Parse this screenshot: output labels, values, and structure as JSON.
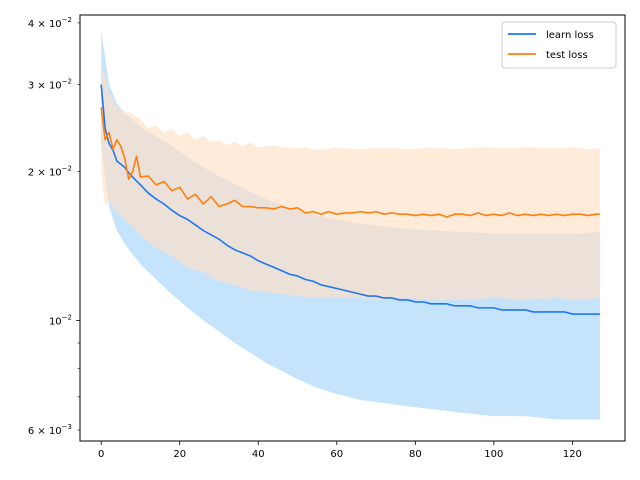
{
  "chart_data": {
    "type": "line",
    "title": "",
    "xlabel": "",
    "ylabel": "",
    "xlim": [
      -5.4,
      133.4
    ],
    "ylim": [
      0.0057,
      0.0415
    ],
    "yscale": "log",
    "grid": false,
    "legend_position": "top-right",
    "x_ticks": [
      {
        "value": 0,
        "label": "0"
      },
      {
        "value": 20,
        "label": "20"
      },
      {
        "value": 40,
        "label": "40"
      },
      {
        "value": 60,
        "label": "60"
      },
      {
        "value": 80,
        "label": "80"
      },
      {
        "value": 100,
        "label": "100"
      },
      {
        "value": 120,
        "label": "120"
      }
    ],
    "y_major_ticks": [
      {
        "value": 0.01,
        "label": "10",
        "exponent": "−2"
      }
    ],
    "y_minor_ticks": [
      {
        "value": 0.006,
        "mantissa": "6",
        "base": "10",
        "exponent": "−3"
      },
      {
        "value": 0.02,
        "mantissa": "2",
        "base": "10",
        "exponent": "−2"
      },
      {
        "value": 0.03,
        "mantissa": "3",
        "base": "10",
        "exponent": "−2"
      },
      {
        "value": 0.04,
        "mantissa": "4",
        "base": "10",
        "exponent": "−2"
      }
    ],
    "y_unlabeled_minor_ticks": [
      0.007,
      0.008,
      0.009
    ],
    "series": [
      {
        "name": "learn loss",
        "color": "#1f77f0",
        "band_color": "#b3d9fb",
        "mean_points": [
          [
            0,
            0.03
          ],
          [
            1,
            0.0245
          ],
          [
            2,
            0.0228
          ],
          [
            3,
            0.0221
          ],
          [
            4,
            0.021
          ],
          [
            5,
            0.0207
          ],
          [
            6,
            0.0204
          ],
          [
            7,
            0.0199
          ],
          [
            8,
            0.0195
          ],
          [
            10,
            0.0188
          ],
          [
            12,
            0.0181
          ],
          [
            14,
            0.0176
          ],
          [
            16,
            0.0172
          ],
          [
            18,
            0.0167
          ],
          [
            20,
            0.0163
          ],
          [
            22,
            0.016
          ],
          [
            24,
            0.0156
          ],
          [
            26,
            0.0152
          ],
          [
            28,
            0.0149
          ],
          [
            30,
            0.0146
          ],
          [
            32,
            0.0142
          ],
          [
            34,
            0.0139
          ],
          [
            36,
            0.0137
          ],
          [
            38,
            0.0135
          ],
          [
            40,
            0.0132
          ],
          [
            42,
            0.013
          ],
          [
            44,
            0.0128
          ],
          [
            46,
            0.0126
          ],
          [
            48,
            0.0124
          ],
          [
            50,
            0.0123
          ],
          [
            52,
            0.0121
          ],
          [
            54,
            0.012
          ],
          [
            56,
            0.0118
          ],
          [
            58,
            0.0117
          ],
          [
            60,
            0.0116
          ],
          [
            62,
            0.0115
          ],
          [
            64,
            0.0114
          ],
          [
            66,
            0.0113
          ],
          [
            68,
            0.0112
          ],
          [
            70,
            0.0112
          ],
          [
            72,
            0.0111
          ],
          [
            74,
            0.0111
          ],
          [
            76,
            0.011
          ],
          [
            78,
            0.011
          ],
          [
            80,
            0.0109
          ],
          [
            82,
            0.0109
          ],
          [
            84,
            0.0108
          ],
          [
            86,
            0.0108
          ],
          [
            88,
            0.0108
          ],
          [
            90,
            0.0107
          ],
          [
            92,
            0.0107
          ],
          [
            94,
            0.0107
          ],
          [
            96,
            0.0106
          ],
          [
            98,
            0.0106
          ],
          [
            100,
            0.0106
          ],
          [
            102,
            0.0105
          ],
          [
            104,
            0.0105
          ],
          [
            106,
            0.0105
          ],
          [
            108,
            0.0105
          ],
          [
            110,
            0.0104
          ],
          [
            112,
            0.0104
          ],
          [
            114,
            0.0104
          ],
          [
            116,
            0.0104
          ],
          [
            118,
            0.0104
          ],
          [
            120,
            0.0103
          ],
          [
            122,
            0.0103
          ],
          [
            124,
            0.0103
          ],
          [
            126,
            0.0103
          ],
          [
            127,
            0.0103
          ]
        ],
        "band_upper": [
          [
            0,
            0.0385
          ],
          [
            2,
            0.03
          ],
          [
            4,
            0.0275
          ],
          [
            6,
            0.0262
          ],
          [
            8,
            0.0255
          ],
          [
            10,
            0.0246
          ],
          [
            14,
            0.0236
          ],
          [
            18,
            0.0225
          ],
          [
            22,
            0.0214
          ],
          [
            26,
            0.0204
          ],
          [
            30,
            0.0196
          ],
          [
            34,
            0.0189
          ],
          [
            38,
            0.0182
          ],
          [
            42,
            0.0176
          ],
          [
            46,
            0.0171
          ],
          [
            50,
            0.0167
          ],
          [
            55,
            0.0163
          ],
          [
            60,
            0.016
          ],
          [
            66,
            0.0157
          ],
          [
            72,
            0.0155
          ],
          [
            78,
            0.0153
          ],
          [
            85,
            0.0152
          ],
          [
            92,
            0.0151
          ],
          [
            100,
            0.015
          ],
          [
            108,
            0.015
          ],
          [
            116,
            0.015
          ],
          [
            122,
            0.015
          ],
          [
            127,
            0.0151
          ]
        ],
        "band_lower": [
          [
            0,
            0.023
          ],
          [
            1,
            0.0195
          ],
          [
            2,
            0.017
          ],
          [
            4,
            0.0152
          ],
          [
            6,
            0.0143
          ],
          [
            8,
            0.0136
          ],
          [
            10,
            0.013
          ],
          [
            14,
            0.0121
          ],
          [
            18,
            0.0113
          ],
          [
            22,
            0.0106
          ],
          [
            26,
            0.01
          ],
          [
            30,
            0.0095
          ],
          [
            34,
            0.009
          ],
          [
            38,
            0.0086
          ],
          [
            42,
            0.0082
          ],
          [
            46,
            0.0079
          ],
          [
            50,
            0.0076
          ],
          [
            55,
            0.0073
          ],
          [
            60,
            0.0071
          ],
          [
            66,
            0.0069
          ],
          [
            72,
            0.0068
          ],
          [
            78,
            0.0067
          ],
          [
            85,
            0.0066
          ],
          [
            92,
            0.0065
          ],
          [
            100,
            0.0064
          ],
          [
            108,
            0.0064
          ],
          [
            116,
            0.0063
          ],
          [
            122,
            0.0063
          ],
          [
            127,
            0.0063
          ]
        ]
      },
      {
        "name": "test loss",
        "color": "#ff7f0e",
        "band_color": "#ffe0c4",
        "mean_points": [
          [
            0,
            0.027
          ],
          [
            1,
            0.0232
          ],
          [
            2,
            0.024
          ],
          [
            3,
            0.0222
          ],
          [
            4,
            0.0232
          ],
          [
            5,
            0.0225
          ],
          [
            6,
            0.0213
          ],
          [
            7,
            0.0193
          ],
          [
            8,
            0.02
          ],
          [
            9,
            0.0215
          ],
          [
            10,
            0.0195
          ],
          [
            12,
            0.0196
          ],
          [
            14,
            0.0188
          ],
          [
            16,
            0.0191
          ],
          [
            18,
            0.0183
          ],
          [
            20,
            0.0186
          ],
          [
            22,
            0.0176
          ],
          [
            24,
            0.018
          ],
          [
            26,
            0.0172
          ],
          [
            28,
            0.0178
          ],
          [
            30,
            0.017
          ],
          [
            32,
            0.0172
          ],
          [
            34,
            0.0175
          ],
          [
            36,
            0.017
          ],
          [
            38,
            0.017
          ],
          [
            40,
            0.0169
          ],
          [
            42,
            0.0169
          ],
          [
            44,
            0.0168
          ],
          [
            46,
            0.017
          ],
          [
            48,
            0.0168
          ],
          [
            50,
            0.0169
          ],
          [
            52,
            0.0165
          ],
          [
            54,
            0.0166
          ],
          [
            56,
            0.0164
          ],
          [
            58,
            0.0166
          ],
          [
            60,
            0.0164
          ],
          [
            62,
            0.0165
          ],
          [
            64,
            0.0165
          ],
          [
            66,
            0.0166
          ],
          [
            68,
            0.0165
          ],
          [
            70,
            0.0166
          ],
          [
            72,
            0.0164
          ],
          [
            74,
            0.0165
          ],
          [
            76,
            0.0164
          ],
          [
            78,
            0.0164
          ],
          [
            80,
            0.0163
          ],
          [
            82,
            0.0164
          ],
          [
            84,
            0.0163
          ],
          [
            86,
            0.0164
          ],
          [
            88,
            0.0162
          ],
          [
            90,
            0.0164
          ],
          [
            92,
            0.0164
          ],
          [
            94,
            0.0163
          ],
          [
            96,
            0.0165
          ],
          [
            98,
            0.0163
          ],
          [
            100,
            0.0164
          ],
          [
            102,
            0.0163
          ],
          [
            104,
            0.0165
          ],
          [
            106,
            0.0163
          ],
          [
            108,
            0.0164
          ],
          [
            110,
            0.0163
          ],
          [
            112,
            0.0164
          ],
          [
            114,
            0.0163
          ],
          [
            116,
            0.0164
          ],
          [
            118,
            0.0163
          ],
          [
            120,
            0.0164
          ],
          [
            122,
            0.0164
          ],
          [
            124,
            0.0163
          ],
          [
            126,
            0.0164
          ],
          [
            127,
            0.0164
          ]
        ],
        "band_upper": [
          [
            0,
            0.033
          ],
          [
            2,
            0.029
          ],
          [
            4,
            0.027
          ],
          [
            6,
            0.0265
          ],
          [
            8,
            0.0262
          ],
          [
            10,
            0.0255
          ],
          [
            12,
            0.0245
          ],
          [
            14,
            0.0248
          ],
          [
            16,
            0.024
          ],
          [
            18,
            0.0244
          ],
          [
            20,
            0.0236
          ],
          [
            22,
            0.024
          ],
          [
            24,
            0.0232
          ],
          [
            26,
            0.0236
          ],
          [
            28,
            0.0229
          ],
          [
            30,
            0.0232
          ],
          [
            32,
            0.0226
          ],
          [
            34,
            0.023
          ],
          [
            36,
            0.0225
          ],
          [
            38,
            0.0229
          ],
          [
            40,
            0.0224
          ],
          [
            44,
            0.0226
          ],
          [
            48,
            0.0223
          ],
          [
            52,
            0.0224
          ],
          [
            56,
            0.0221
          ],
          [
            60,
            0.0224
          ],
          [
            66,
            0.0222
          ],
          [
            72,
            0.0224
          ],
          [
            78,
            0.0222
          ],
          [
            84,
            0.0224
          ],
          [
            90,
            0.0222
          ],
          [
            96,
            0.0224
          ],
          [
            102,
            0.0223
          ],
          [
            108,
            0.0224
          ],
          [
            114,
            0.0223
          ],
          [
            120,
            0.0224
          ],
          [
            124,
            0.0222
          ],
          [
            127,
            0.0223
          ]
        ],
        "band_lower": [
          [
            0,
            0.02
          ],
          [
            1,
            0.017
          ],
          [
            2,
            0.0175
          ],
          [
            4,
            0.0165
          ],
          [
            6,
            0.016
          ],
          [
            8,
            0.0155
          ],
          [
            10,
            0.0148
          ],
          [
            14,
            0.014
          ],
          [
            18,
            0.0135
          ],
          [
            22,
            0.0128
          ],
          [
            26,
            0.0125
          ],
          [
            30,
            0.012
          ],
          [
            34,
            0.0118
          ],
          [
            38,
            0.0115
          ],
          [
            42,
            0.0114
          ],
          [
            46,
            0.0113
          ],
          [
            50,
            0.0112
          ],
          [
            55,
            0.0111
          ],
          [
            60,
            0.0111
          ],
          [
            66,
            0.0111
          ],
          [
            72,
            0.011
          ],
          [
            78,
            0.0111
          ],
          [
            85,
            0.011
          ],
          [
            92,
            0.011
          ],
          [
            100,
            0.0111
          ],
          [
            108,
            0.011
          ],
          [
            116,
            0.0111
          ],
          [
            122,
            0.011
          ],
          [
            127,
            0.0111
          ]
        ]
      }
    ]
  }
}
